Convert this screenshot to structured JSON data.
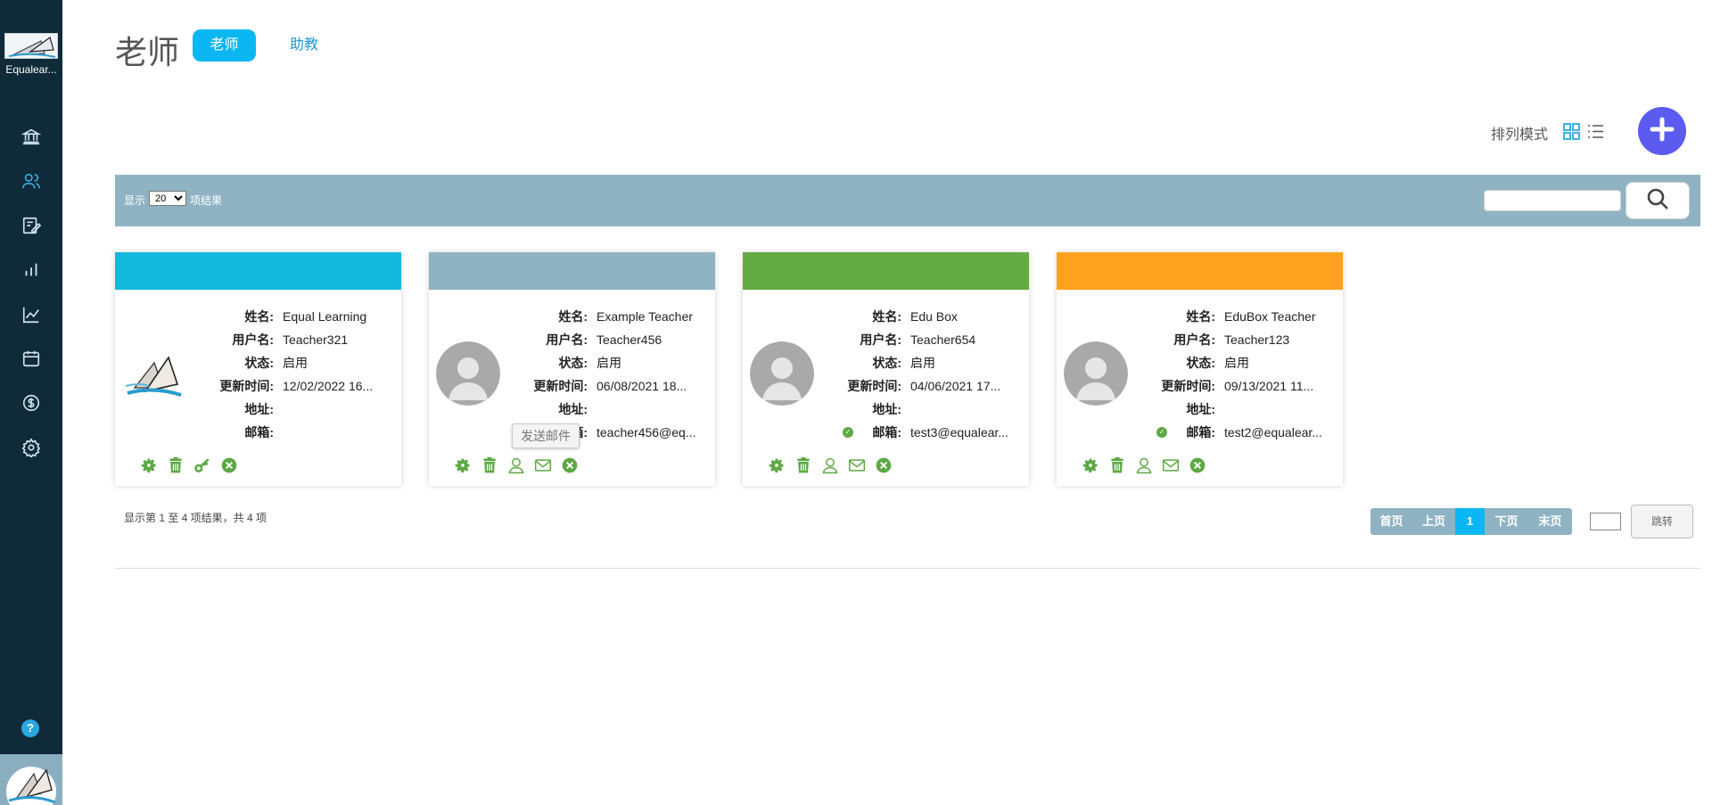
{
  "app": {
    "name": "Equalear..."
  },
  "header": {
    "title": "老师",
    "tabs": [
      "老师",
      "助教"
    ]
  },
  "controls": {
    "sort_label": "排列模式"
  },
  "toolbar": {
    "show_label": "显示",
    "page_size": "20",
    "page_size_options": [
      "20"
    ],
    "result_label": "项结果",
    "search_placeholder": ""
  },
  "cards": [
    {
      "color": "#13b9dc",
      "name": "Equal Learning",
      "username": "Teacher321",
      "status": "启用",
      "updated": "12/02/2022 16...",
      "address": "",
      "email": "",
      "avatar": "logo",
      "actions": [
        "gear-icon",
        "trash-icon",
        "key-icon",
        "close-circle-icon"
      ]
    },
    {
      "color": "#8fb3c3",
      "name": "Example Teacher",
      "username": "Teacher456",
      "status": "启用",
      "updated": "06/08/2021 18...",
      "address": "",
      "email": "teacher456@eq...",
      "avatar": "default",
      "actions": [
        "gear-icon",
        "trash-icon",
        "user-icon",
        "mail-icon",
        "close-circle-icon"
      ]
    },
    {
      "color": "#64aa45",
      "name": "Edu Box",
      "username": "Teacher654",
      "status": "启用",
      "updated": "04/06/2021 17...",
      "address": "",
      "email": "test3@equalear...",
      "verified": true,
      "avatar": "default",
      "actions": [
        "gear-icon",
        "trash-icon",
        "user-icon",
        "mail-icon",
        "close-circle-icon"
      ]
    },
    {
      "color": "#fea11f",
      "name": "EduBox Teacher",
      "username": "Teacher123",
      "status": "启用",
      "updated": "09/13/2021 11...",
      "address": "",
      "email": "test2@equalear...",
      "verified": true,
      "avatar": "default",
      "actions": [
        "gear-icon",
        "trash-icon",
        "user-icon",
        "mail-icon",
        "close-circle-icon"
      ]
    }
  ],
  "labels": {
    "name": "姓名:",
    "username": "用户名:",
    "status": "状态:",
    "updated": "更新时间:",
    "address": "地址:",
    "email": "邮箱:"
  },
  "tooltip": "发送邮件",
  "summary": "显示第 1 至 4 项结果，共 4 项",
  "pagination": {
    "first": "首页",
    "prev": "上页",
    "current": "1",
    "next": "下页",
    "last": "末页",
    "jump_label": "跳转"
  },
  "sidebar": {
    "help": "?",
    "items": [
      "bank-icon",
      "users-icon",
      "edit-icon",
      "bar-chart-icon",
      "line-chart-icon",
      "calendar-icon",
      "dollar-icon",
      "settings-icon"
    ]
  },
  "colors": {
    "sidebar": "#0f2a38",
    "accent": "#0bb7f2",
    "action_green": "#5da844",
    "add_button": "#5b5bf0",
    "toolbar": "#8fb3c3"
  }
}
